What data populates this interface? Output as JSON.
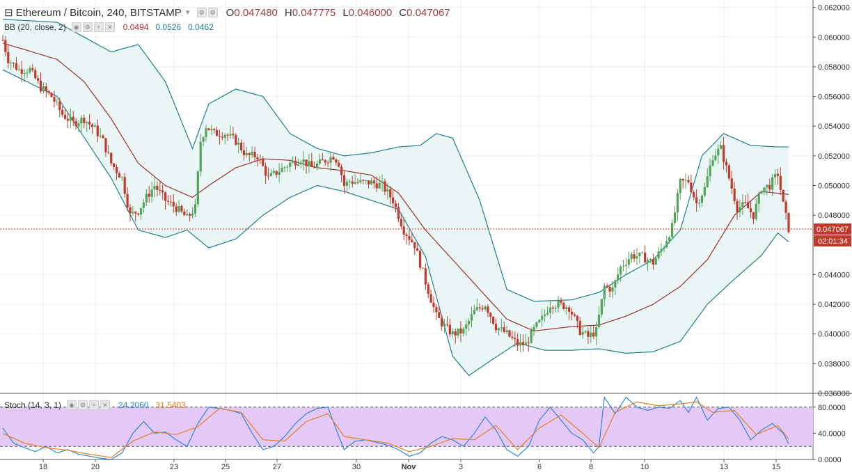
{
  "header": {
    "symbol_title": "Ethereum / Bitcoin, 240, BITSTAMP",
    "ohlc": [
      {
        "key": "O",
        "value": "0.047480"
      },
      {
        "key": "H",
        "value": "0.047775"
      },
      {
        "key": "L",
        "value": "0.046000"
      },
      {
        "key": "C",
        "value": "0.047067"
      }
    ]
  },
  "indicators": {
    "bb": {
      "label": "BB (20, close, 2)",
      "values": [
        "0.0494",
        "0.0526",
        "0.0462"
      ],
      "colors": [
        "#b02a2a",
        "#1e7f8f",
        "#1e7f8f"
      ]
    },
    "stoch": {
      "label": "Stoch (14, 3, 1)",
      "values": [
        "24.2060",
        "31.5403"
      ],
      "colors": [
        "#2e86de",
        "#e67e22"
      ]
    }
  },
  "last_price": {
    "value": "0.047067",
    "countdown": "02:01:34"
  },
  "colors": {
    "up": "#53a35b",
    "down": "#c0392b",
    "bb_mid": "#9b3030",
    "bb_band": "#1f7f8c",
    "bb_fill": "#eaf6f6",
    "stoch_fill": "#e4c8f8",
    "stoch_k": "#2e86de",
    "stoch_d": "#e67e22",
    "grid": "#eeeeee",
    "price_tag": "#c0392b"
  },
  "chart_data": [
    {
      "type": "candlestick",
      "title": "Ethereum / Bitcoin, 240, BITSTAMP",
      "x_tick_labels": [
        "18",
        "20",
        "23",
        "25",
        "27",
        "30",
        "Nov",
        "3",
        "6",
        "8",
        "10",
        "13",
        "15"
      ],
      "y_tick_labels": [
        "0.062000",
        "0.060000",
        "0.058000",
        "0.056000",
        "0.054000",
        "0.052000",
        "0.050000",
        "0.048000",
        "0.044000",
        "0.042000",
        "0.040000",
        "0.038000",
        "0.036000"
      ],
      "ylim": [
        0.036,
        0.0625
      ],
      "close_anchors": [
        [
          0,
          0.0598
        ],
        [
          2,
          0.0585
        ],
        [
          6,
          0.0578
        ],
        [
          10,
          0.0578
        ],
        [
          14,
          0.0566
        ],
        [
          18,
          0.056
        ],
        [
          22,
          0.0548
        ],
        [
          26,
          0.0542
        ],
        [
          30,
          0.0545
        ],
        [
          34,
          0.0538
        ],
        [
          37,
          0.053
        ],
        [
          40,
          0.0515
        ],
        [
          44,
          0.0505
        ],
        [
          47,
          0.048
        ],
        [
          50,
          0.0483
        ],
        [
          53,
          0.0492
        ],
        [
          56,
          0.05
        ],
        [
          60,
          0.049
        ],
        [
          64,
          0.0485
        ],
        [
          68,
          0.0478
        ],
        [
          71,
          0.0485
        ],
        [
          73,
          0.053
        ],
        [
          75,
          0.054
        ],
        [
          78,
          0.0535
        ],
        [
          82,
          0.0535
        ],
        [
          86,
          0.053
        ],
        [
          90,
          0.052
        ],
        [
          94,
          0.052
        ],
        [
          98,
          0.0505
        ],
        [
          102,
          0.051
        ],
        [
          106,
          0.0515
        ],
        [
          110,
          0.0518
        ],
        [
          114,
          0.0512
        ],
        [
          118,
          0.0516
        ],
        [
          122,
          0.052
        ],
        [
          124,
          0.0515
        ],
        [
          126,
          0.05
        ],
        [
          128,
          0.0503
        ],
        [
          132,
          0.0502
        ],
        [
          136,
          0.0502
        ],
        [
          140,
          0.05
        ],
        [
          144,
          0.049
        ],
        [
          148,
          0.047
        ],
        [
          152,
          0.046
        ],
        [
          156,
          0.0435
        ],
        [
          160,
          0.0412
        ],
        [
          163,
          0.0405
        ],
        [
          166,
          0.04
        ],
        [
          170,
          0.0402
        ],
        [
          174,
          0.0415
        ],
        [
          178,
          0.042
        ],
        [
          182,
          0.0405
        ],
        [
          186,
          0.04
        ],
        [
          190,
          0.0393
        ],
        [
          193,
          0.0393
        ],
        [
          196,
          0.0403
        ],
        [
          199,
          0.041
        ],
        [
          202,
          0.042
        ],
        [
          205,
          0.042
        ],
        [
          209,
          0.0418
        ],
        [
          213,
          0.0402
        ],
        [
          216,
          0.0398
        ],
        [
          219,
          0.0402
        ],
        [
          222,
          0.0432
        ],
        [
          225,
          0.043
        ],
        [
          228,
          0.0445
        ],
        [
          232,
          0.0453
        ],
        [
          236,
          0.0452
        ],
        [
          240,
          0.0448
        ],
        [
          244,
          0.046
        ],
        [
          247,
          0.0472
        ],
        [
          250,
          0.0502
        ],
        [
          253,
          0.0503
        ],
        [
          256,
          0.0488
        ],
        [
          259,
          0.0498
        ],
        [
          262,
          0.052
        ],
        [
          265,
          0.0525
        ],
        [
          268,
          0.0505
        ],
        [
          271,
          0.0485
        ],
        [
          274,
          0.0487
        ],
        [
          277,
          0.048
        ],
        [
          280,
          0.0498
        ],
        [
          283,
          0.05
        ],
        [
          286,
          0.0508
        ],
        [
          288,
          0.0487
        ],
        [
          290,
          0.0471
        ]
      ],
      "bb_upper": [
        [
          0,
          0.0612
        ],
        [
          20,
          0.061
        ],
        [
          40,
          0.059
        ],
        [
          50,
          0.0595
        ],
        [
          60,
          0.057
        ],
        [
          70,
          0.0525
        ],
        [
          76,
          0.0555
        ],
        [
          86,
          0.0565
        ],
        [
          96,
          0.056
        ],
        [
          106,
          0.0535
        ],
        [
          116,
          0.0525
        ],
        [
          126,
          0.052
        ],
        [
          136,
          0.0522
        ],
        [
          146,
          0.0526
        ],
        [
          154,
          0.0527
        ],
        [
          160,
          0.0535
        ],
        [
          166,
          0.0532
        ],
        [
          176,
          0.049
        ],
        [
          186,
          0.043
        ],
        [
          196,
          0.0422
        ],
        [
          210,
          0.0423
        ],
        [
          220,
          0.0428
        ],
        [
          230,
          0.044
        ],
        [
          240,
          0.045
        ],
        [
          250,
          0.047
        ],
        [
          258,
          0.052
        ],
        [
          266,
          0.0535
        ],
        [
          276,
          0.0527
        ],
        [
          286,
          0.0526
        ],
        [
          290,
          0.0526
        ]
      ],
      "bb_lower": [
        [
          0,
          0.0578
        ],
        [
          20,
          0.056
        ],
        [
          40,
          0.0505
        ],
        [
          50,
          0.047
        ],
        [
          60,
          0.0465
        ],
        [
          68,
          0.047
        ],
        [
          76,
          0.0458
        ],
        [
          86,
          0.0464
        ],
        [
          96,
          0.048
        ],
        [
          106,
          0.0492
        ],
        [
          116,
          0.05
        ],
        [
          126,
          0.0496
        ],
        [
          136,
          0.049
        ],
        [
          146,
          0.0484
        ],
        [
          156,
          0.0452
        ],
        [
          166,
          0.0385
        ],
        [
          172,
          0.0372
        ],
        [
          180,
          0.0382
        ],
        [
          190,
          0.0394
        ],
        [
          200,
          0.0389
        ],
        [
          210,
          0.0389
        ],
        [
          220,
          0.039
        ],
        [
          230,
          0.0387
        ],
        [
          240,
          0.0388
        ],
        [
          250,
          0.0395
        ],
        [
          260,
          0.042
        ],
        [
          270,
          0.0437
        ],
        [
          280,
          0.0453
        ],
        [
          286,
          0.0468
        ],
        [
          290,
          0.0462
        ]
      ],
      "bb_middle": [
        [
          0,
          0.0596
        ],
        [
          20,
          0.0585
        ],
        [
          30,
          0.057
        ],
        [
          40,
          0.0545
        ],
        [
          50,
          0.0515
        ],
        [
          60,
          0.05
        ],
        [
          70,
          0.0492
        ],
        [
          76,
          0.05
        ],
        [
          86,
          0.0512
        ],
        [
          96,
          0.0518
        ],
        [
          106,
          0.0517
        ],
        [
          116,
          0.0512
        ],
        [
          126,
          0.051
        ],
        [
          136,
          0.0507
        ],
        [
          146,
          0.0495
        ],
        [
          156,
          0.047
        ],
        [
          166,
          0.045
        ],
        [
          176,
          0.043
        ],
        [
          186,
          0.041
        ],
        [
          196,
          0.0402
        ],
        [
          210,
          0.0405
        ],
        [
          220,
          0.0406
        ],
        [
          230,
          0.0412
        ],
        [
          240,
          0.042
        ],
        [
          250,
          0.0432
        ],
        [
          260,
          0.045
        ],
        [
          270,
          0.048
        ],
        [
          280,
          0.0496
        ],
        [
          290,
          0.0494
        ]
      ]
    },
    {
      "type": "line",
      "title": "Stoch (14, 3, 1)",
      "y_tick_labels": [
        "80.0000",
        "40.0000",
        "0.0000"
      ],
      "ylim": [
        0,
        100
      ],
      "bands": [
        20,
        80
      ],
      "series": [
        {
          "name": "",
          "color": "#2e86de",
          "points": [
            [
              0,
              48
            ],
            [
              4,
              25
            ],
            [
              8,
              18
            ],
            [
              12,
              12
            ],
            [
              16,
              20
            ],
            [
              20,
              10
            ],
            [
              24,
              15
            ],
            [
              28,
              8
            ],
            [
              32,
              5
            ],
            [
              36,
              2
            ],
            [
              40,
              0
            ],
            [
              44,
              10
            ],
            [
              48,
              40
            ],
            [
              52,
              58
            ],
            [
              56,
              40
            ],
            [
              60,
              42
            ],
            [
              64,
              30
            ],
            [
              68,
              20
            ],
            [
              72,
              55
            ],
            [
              76,
              80
            ],
            [
              80,
              78
            ],
            [
              84,
              75
            ],
            [
              88,
              70
            ],
            [
              92,
              40
            ],
            [
              96,
              15
            ],
            [
              100,
              20
            ],
            [
              104,
              35
            ],
            [
              108,
              55
            ],
            [
              112,
              70
            ],
            [
              116,
              78
            ],
            [
              120,
              80
            ],
            [
              124,
              35
            ],
            [
              126,
              15
            ],
            [
              130,
              28
            ],
            [
              134,
              30
            ],
            [
              138,
              26
            ],
            [
              142,
              22
            ],
            [
              146,
              15
            ],
            [
              150,
              5
            ],
            [
              154,
              10
            ],
            [
              158,
              25
            ],
            [
              162,
              35
            ],
            [
              166,
              30
            ],
            [
              170,
              20
            ],
            [
              174,
              40
            ],
            [
              178,
              65
            ],
            [
              182,
              45
            ],
            [
              186,
              15
            ],
            [
              190,
              5
            ],
            [
              194,
              20
            ],
            [
              198,
              60
            ],
            [
              202,
              80
            ],
            [
              206,
              60
            ],
            [
              210,
              40
            ],
            [
              214,
              30
            ],
            [
              218,
              10
            ],
            [
              220,
              20
            ],
            [
              222,
              95
            ],
            [
              226,
              70
            ],
            [
              230,
              95
            ],
            [
              234,
              80
            ],
            [
              238,
              75
            ],
            [
              242,
              80
            ],
            [
              246,
              78
            ],
            [
              250,
              90
            ],
            [
              253,
              72
            ],
            [
              256,
              95
            ],
            [
              260,
              60
            ],
            [
              264,
              78
            ],
            [
              268,
              80
            ],
            [
              272,
              60
            ],
            [
              276,
              30
            ],
            [
              280,
              45
            ],
            [
              284,
              55
            ],
            [
              288,
              40
            ],
            [
              290,
              24
            ]
          ]
        },
        {
          "name": "",
          "color": "#e67e22",
          "points": [
            [
              0,
              40
            ],
            [
              8,
              25
            ],
            [
              16,
              18
            ],
            [
              24,
              14
            ],
            [
              32,
              8
            ],
            [
              40,
              3
            ],
            [
              48,
              28
            ],
            [
              56,
              42
            ],
            [
              64,
              38
            ],
            [
              72,
              50
            ],
            [
              80,
              78
            ],
            [
              88,
              72
            ],
            [
              96,
              30
            ],
            [
              104,
              28
            ],
            [
              112,
              58
            ],
            [
              120,
              70
            ],
            [
              126,
              35
            ],
            [
              134,
              30
            ],
            [
              142,
              25
            ],
            [
              150,
              12
            ],
            [
              158,
              20
            ],
            [
              166,
              32
            ],
            [
              174,
              30
            ],
            [
              182,
              52
            ],
            [
              190,
              15
            ],
            [
              198,
              48
            ],
            [
              206,
              68
            ],
            [
              214,
              40
            ],
            [
              220,
              18
            ],
            [
              226,
              72
            ],
            [
              234,
              88
            ],
            [
              242,
              82
            ],
            [
              250,
              85
            ],
            [
              256,
              88
            ],
            [
              262,
              72
            ],
            [
              270,
              75
            ],
            [
              278,
              38
            ],
            [
              286,
              52
            ],
            [
              290,
              31
            ]
          ]
        }
      ]
    }
  ]
}
